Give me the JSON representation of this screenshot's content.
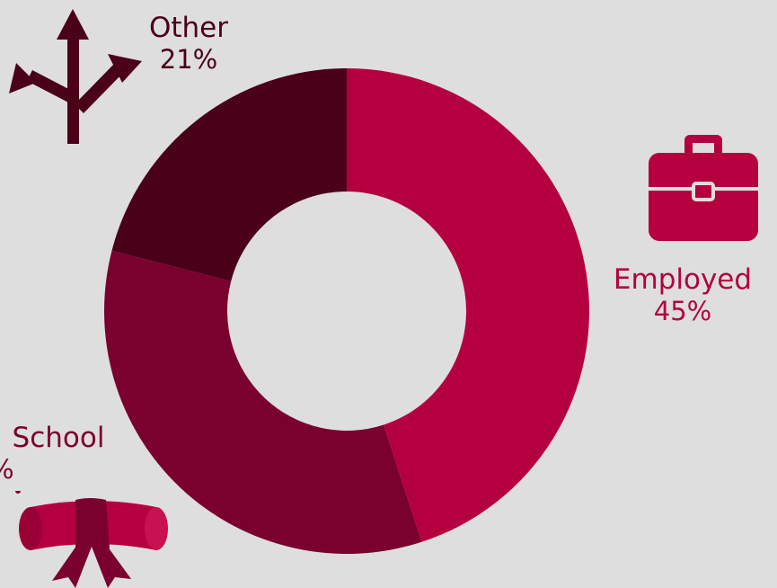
{
  "chart_data": {
    "type": "pie",
    "variant": "donut",
    "slices": [
      {
        "name": "Employed",
        "value": 45,
        "display": "45%",
        "color": "#b5003f"
      },
      {
        "name": "School",
        "value": 34,
        "display": "%",
        "color": "#7a002e"
      },
      {
        "name": "Other",
        "value": 21,
        "display": "21%",
        "color": "#4a0018"
      }
    ],
    "start_angle_deg": 0,
    "direction": "clockwise"
  },
  "icons": {
    "employed": "briefcase-icon",
    "school": "diploma-scroll-icon",
    "other": "crossroads-arrows-icon"
  },
  "colors": {
    "background": "#dedede"
  }
}
